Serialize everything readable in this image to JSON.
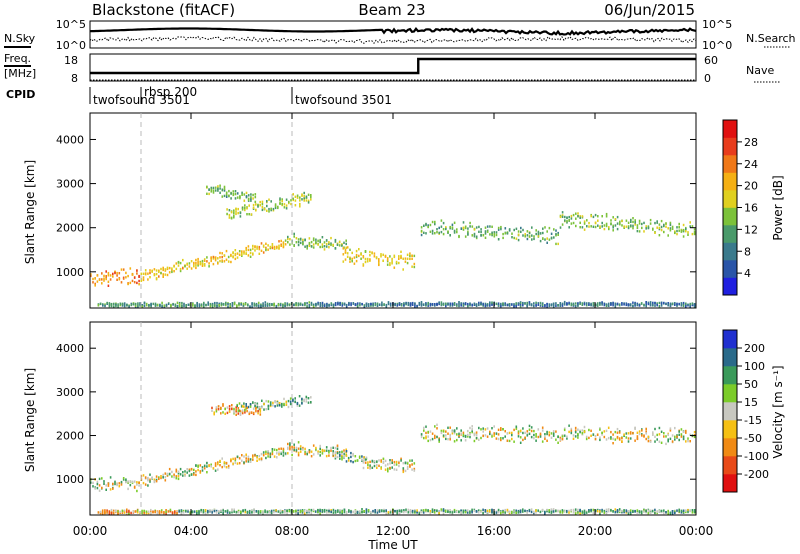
{
  "header": {
    "station": "Blackstone (fitACF)",
    "beam": "Beam 23",
    "date": "06/Jun/2015"
  },
  "strips": {
    "nsky_label": "N.Sky",
    "nsearch_label": "N.Search",
    "freq_label_1": "Freq.",
    "freq_label_2": "[MHz]",
    "nave_label": "Nave",
    "cpid_label": "CPID",
    "noise_ticks_left": [
      "10^5",
      "10^0"
    ],
    "noise_ticks_right": [
      "10^5",
      "10^0"
    ],
    "freq_ticks": [
      "18",
      "8"
    ],
    "nave_ticks": [
      "60",
      "0"
    ],
    "cpid_entries": [
      {
        "name": "twofsound 3501",
        "t": 0.0
      },
      {
        "name": "rbsp 200",
        "t": 2.0
      },
      {
        "name": "twofsound 3501",
        "t": 8.0
      }
    ]
  },
  "colorbars": {
    "power": {
      "label": "Power [dB]",
      "ticks": [
        "28",
        "24",
        "20",
        "16",
        "12",
        "8",
        "4"
      ],
      "colors": [
        "#2020e0",
        "#2a55a8",
        "#3a7a8c",
        "#4a9a6a",
        "#7cc23a",
        "#e0d020",
        "#f5b014",
        "#f07818",
        "#e83c1c",
        "#e01010"
      ]
    },
    "velocity": {
      "label": "Velocity [m s⁻¹]",
      "ticks": [
        "200",
        "100",
        "50",
        "15",
        "-15",
        "-50",
        "-100",
        "-200"
      ],
      "colors": [
        "#2030d0",
        "#2a6a8a",
        "#3a9a5a",
        "#7ccc2a",
        "#c8c8c0",
        "#f5c014",
        "#f08a14",
        "#e84a18",
        "#e01010"
      ]
    }
  },
  "axes": {
    "xlabel": "Time UT",
    "ylabel": "Slant Range [km]",
    "xticks": [
      "00:00",
      "04:00",
      "08:00",
      "12:00",
      "16:00",
      "20:00",
      "00:00"
    ],
    "yticks": [
      "1000",
      "2000",
      "3000",
      "4000"
    ]
  },
  "chart_data": [
    {
      "type": "heatmap",
      "title": "",
      "xlabel": "Time UT",
      "ylabel": "Slant Range [km]",
      "colorbar_label": "Power [dB]",
      "xlim": [
        0,
        24
      ],
      "ylim": [
        180,
        4600
      ],
      "clim": [
        0,
        30
      ],
      "regions": [
        {
          "t0": 0.0,
          "t1": 2.0,
          "r_start": 860,
          "r_end": 900,
          "width": 340,
          "value": 22
        },
        {
          "t0": 2.0,
          "t1": 7.8,
          "r_start": 900,
          "r_end": 1650,
          "width": 260,
          "value": 18
        },
        {
          "t0": 5.4,
          "t1": 8.8,
          "r_start": 2300,
          "r_end": 2700,
          "width": 300,
          "value": 14
        },
        {
          "t0": 4.6,
          "t1": 6.6,
          "r_start": 2900,
          "r_end": 2650,
          "width": 260,
          "value": 12
        },
        {
          "t0": 7.8,
          "t1": 10.2,
          "r_start": 1700,
          "r_end": 1600,
          "width": 300,
          "value": 13
        },
        {
          "t0": 10.0,
          "t1": 12.9,
          "r_start": 1350,
          "r_end": 1250,
          "width": 380,
          "value": 17
        },
        {
          "t0": 13.1,
          "t1": 18.6,
          "r_start": 2000,
          "r_end": 1800,
          "width": 350,
          "value": 12
        },
        {
          "t0": 18.6,
          "t1": 24.0,
          "r_start": 2200,
          "r_end": 1950,
          "width": 360,
          "value": 13
        },
        {
          "t0": 0.3,
          "t1": 9.0,
          "r_start": 250,
          "r_end": 250,
          "width": 110,
          "value": 10
        },
        {
          "t0": 9.0,
          "t1": 24.0,
          "r_start": 260,
          "r_end": 260,
          "width": 90,
          "value": 7
        }
      ]
    },
    {
      "type": "heatmap",
      "title": "",
      "xlabel": "Time UT",
      "ylabel": "Slant Range [km]",
      "colorbar_label": "Velocity [m s⁻¹]",
      "xlim": [
        0,
        24
      ],
      "ylim": [
        180,
        4600
      ],
      "clim": [
        -250,
        250
      ],
      "regions": [
        {
          "t0": 0.0,
          "t1": 2.0,
          "r_start": 880,
          "r_end": 900,
          "width": 300,
          "value": 0
        },
        {
          "t0": 2.0,
          "t1": 7.8,
          "r_start": 950,
          "r_end": 1650,
          "width": 260,
          "value": 0
        },
        {
          "t0": 5.8,
          "t1": 8.8,
          "r_start": 2650,
          "r_end": 2800,
          "width": 220,
          "value": 40
        },
        {
          "t0": 4.8,
          "t1": 6.8,
          "r_start": 2600,
          "r_end": 2550,
          "width": 260,
          "value": -35
        },
        {
          "t0": 7.8,
          "t1": 10.2,
          "r_start": 1700,
          "r_end": 1600,
          "width": 300,
          "value": 0
        },
        {
          "t0": 9.6,
          "t1": 11.0,
          "r_start": 1550,
          "r_end": 1450,
          "width": 250,
          "value": 40
        },
        {
          "t0": 10.8,
          "t1": 12.9,
          "r_start": 1350,
          "r_end": 1300,
          "width": 350,
          "value": 0
        },
        {
          "t0": 13.1,
          "t1": 24.0,
          "r_start": 2050,
          "r_end": 2000,
          "width": 360,
          "value": 0
        },
        {
          "t0": 0.3,
          "t1": 3.5,
          "r_start": 250,
          "r_end": 250,
          "width": 100,
          "value": -35
        },
        {
          "t0": 3.5,
          "t1": 24.0,
          "r_start": 260,
          "r_end": 260,
          "width": 90,
          "value": 40
        }
      ]
    }
  ]
}
